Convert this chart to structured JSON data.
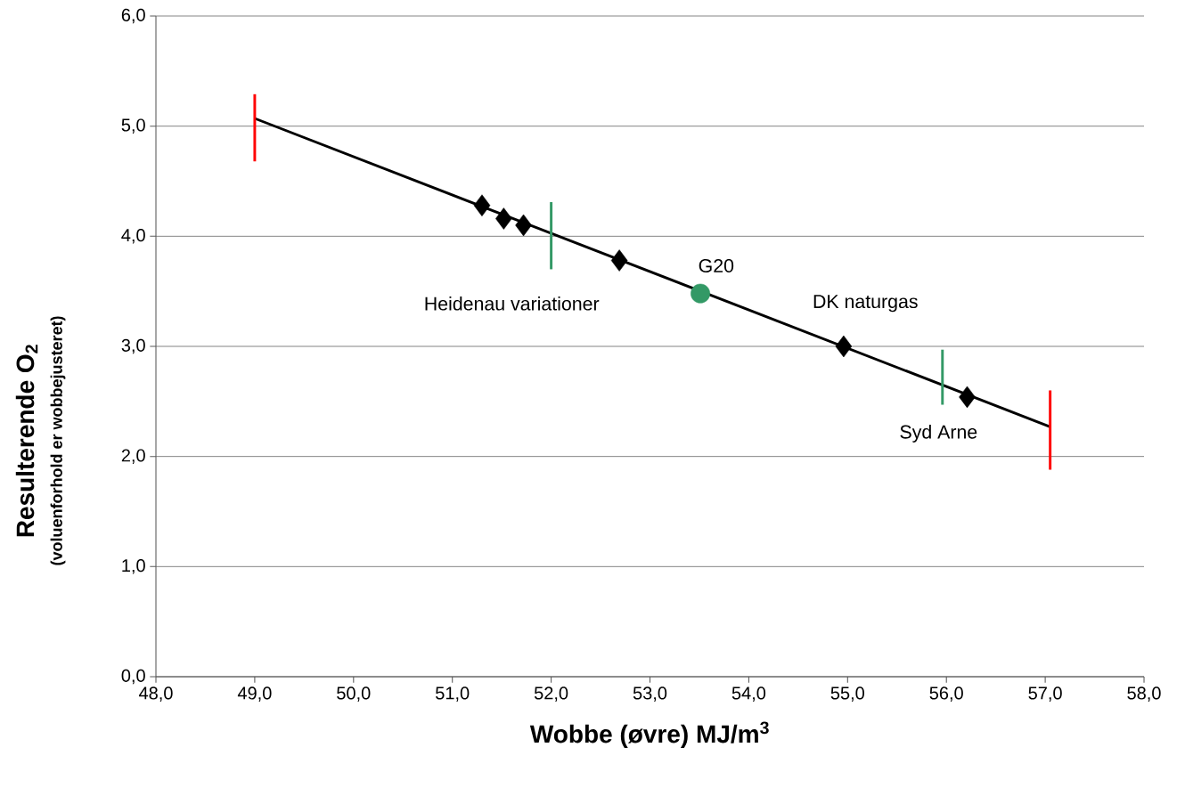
{
  "chart_data": {
    "type": "scatter",
    "xlabel": "Wobbe (øvre) MJ/m$^{3}$",
    "ylabel": "Resulterende O$_{2}$",
    "xlim": [
      48,
      58
    ],
    "ylim": [
      0,
      6
    ],
    "xticks": [
      {
        "value": 48,
        "label": "48,0"
      },
      {
        "value": 49,
        "label": "49,0"
      },
      {
        "value": 50,
        "label": "50,0"
      },
      {
        "value": 51,
        "label": "51,0"
      },
      {
        "value": 52,
        "label": "52,0"
      },
      {
        "value": 53,
        "label": "53,0"
      },
      {
        "value": 54,
        "label": "54,0"
      },
      {
        "value": 55,
        "label": "55,0"
      },
      {
        "value": 56,
        "label": "56,0"
      },
      {
        "value": 57,
        "label": "57,0"
      },
      {
        "value": 58,
        "label": "58,0"
      }
    ],
    "yticks": [
      {
        "value": 0,
        "label": "0,0"
      },
      {
        "value": 1,
        "label": "1,0"
      },
      {
        "value": 2,
        "label": "2,0"
      },
      {
        "value": 3,
        "label": "3,0"
      },
      {
        "value": 4,
        "label": "4,0"
      },
      {
        "value": 5,
        "label": "5,0"
      },
      {
        "value": 6,
        "label": "6,0"
      }
    ],
    "grid": "y",
    "series": [
      {
        "type": "line",
        "color": "#000000",
        "marker": "none",
        "line_style": "solid",
        "x": [
          49.0,
          57.05
        ],
        "values": [
          5.07,
          2.27
        ]
      },
      {
        "type": "line",
        "color": "#ff0000",
        "marker": "none",
        "line_style": "solid",
        "x": [
          49.0,
          49.0
        ],
        "values": [
          4.68,
          5.29
        ]
      },
      {
        "type": "line",
        "color": "#ff0000",
        "marker": "none",
        "line_style": "solid",
        "x": [
          57.05,
          57.05
        ],
        "values": [
          1.88,
          2.6
        ]
      },
      {
        "type": "line",
        "color": "#339966",
        "marker": "none",
        "line_style": "solid",
        "x": [
          52.0,
          52.0
        ],
        "values": [
          3.7,
          4.31
        ]
      },
      {
        "type": "line",
        "color": "#339966",
        "marker": "none",
        "line_style": "solid",
        "x": [
          55.96,
          55.96
        ],
        "values": [
          2.47,
          2.97
        ]
      },
      {
        "color": "#000000",
        "marker": "diamond",
        "x": [
          51.3,
          51.52,
          51.72,
          52.69,
          54.96,
          56.21
        ],
        "values": [
          4.28,
          4.16,
          4.1,
          3.78,
          3.0,
          2.54
        ]
      },
      {
        "color": "#339966",
        "marker": "circle",
        "x": [
          53.51
        ],
        "values": [
          3.48
        ]
      }
    ],
    "annotations": [
      "(voluenforhold er wobbejusteret)",
      "Heidenau variationer",
      "G20",
      "DK naturgas",
      "Syd Arne"
    ]
  }
}
